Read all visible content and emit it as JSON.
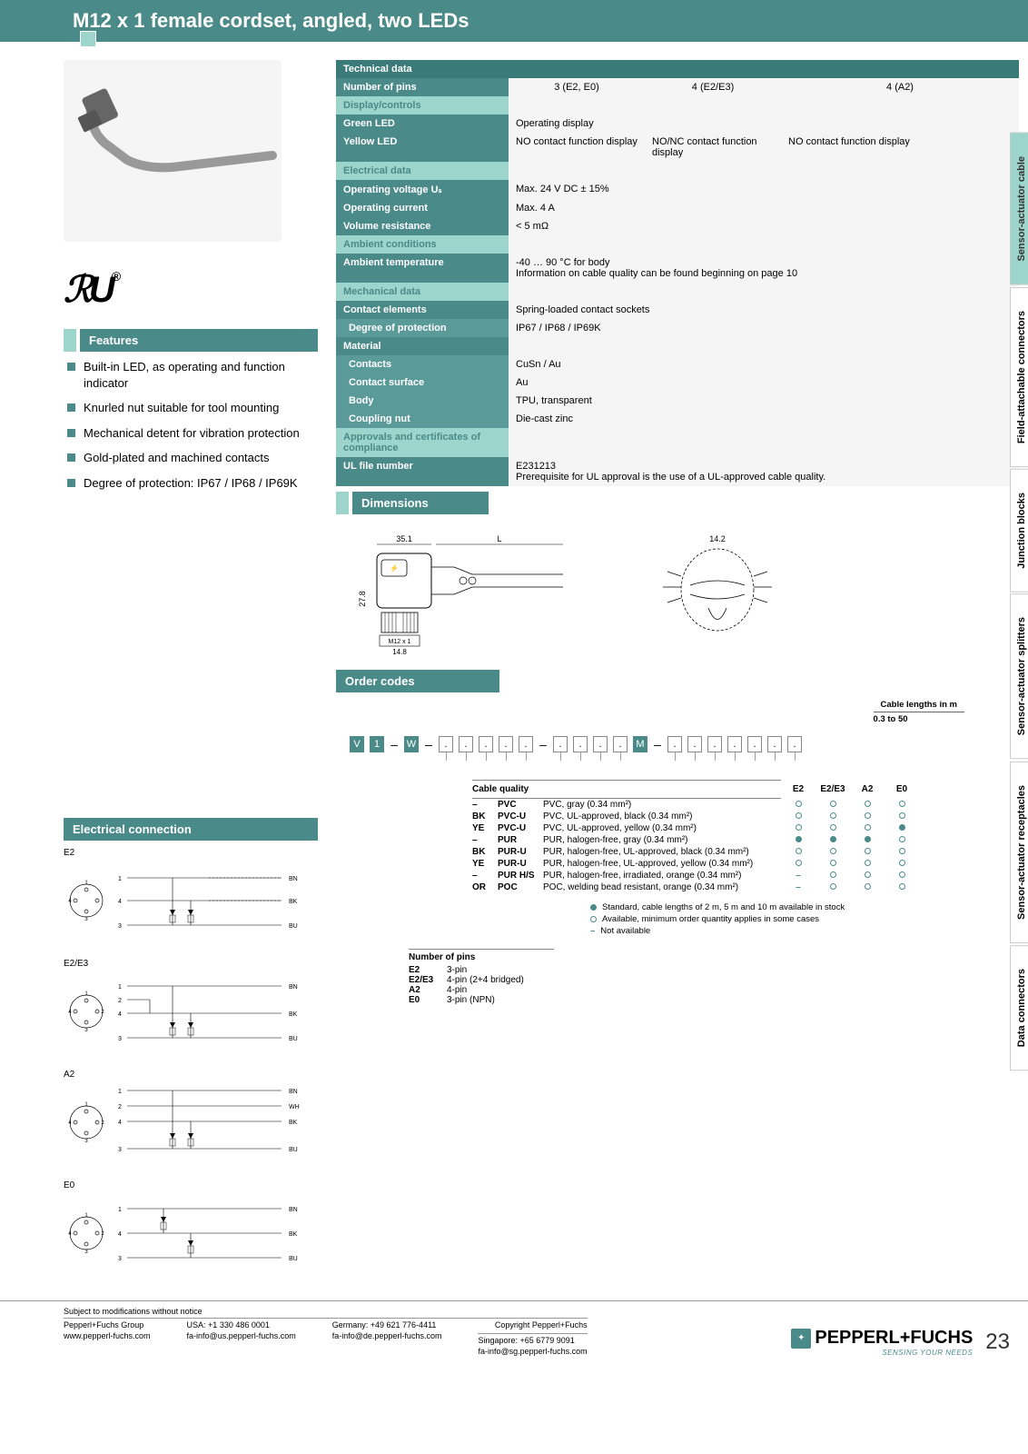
{
  "header": {
    "title": "M12 x 1 female cordset, angled, two LEDs"
  },
  "ul_mark": "RU",
  "features": {
    "title": "Features",
    "items": [
      "Built-in LED, as operating and function indicator",
      "Knurled nut suitable for tool mounting",
      "Mechanical detent for vibration protection",
      "Gold-plated and machined contacts",
      "Degree of protection: IP67 / IP68 / IP69K"
    ]
  },
  "tech": {
    "title": "Technical data",
    "pins": {
      "label": "Number of pins",
      "c1": "3 (E2, E0)",
      "c2": "4 (E2/E3)",
      "c3": "4 (A2)"
    },
    "display_hdr": "Display/controls",
    "green": {
      "label": "Green LED",
      "val": "Operating display"
    },
    "yellow": {
      "label": "Yellow LED",
      "c1": "NO contact function display",
      "c2": "NO/NC contact function display",
      "c3": "NO contact function display"
    },
    "elec_hdr": "Electrical data",
    "ov": {
      "label": "Operating voltage Uₛ",
      "val": "Max. 24 V DC ± 15%"
    },
    "oc": {
      "label": "Operating current",
      "val": "Max. 4 A"
    },
    "vr": {
      "label": "Volume resistance",
      "val": "< 5 mΩ"
    },
    "amb_hdr": "Ambient conditions",
    "at": {
      "label": "Ambient temperature",
      "val": "-40 … 90 °C for body\nInformation on cable quality can be found beginning on page 10"
    },
    "mech_hdr": "Mechanical data",
    "ce": {
      "label": "Contact elements",
      "val": "Spring-loaded contact sockets"
    },
    "dp": {
      "label": "Degree of protection",
      "val": "IP67 / IP68 / IP69K"
    },
    "mat": {
      "label": "Material",
      "val": ""
    },
    "con": {
      "label": "Contacts",
      "val": "CuSn / Au"
    },
    "cs": {
      "label": "Contact surface",
      "val": "Au"
    },
    "body": {
      "label": "Body",
      "val": "TPU, transparent"
    },
    "cn": {
      "label": "Coupling nut",
      "val": "Die-cast zinc"
    },
    "appr_hdr": "Approvals and certificates of compliance",
    "ul": {
      "label": "UL file number",
      "val": "E231213\nPrerequisite for UL approval is the use of a UL-approved cable quality."
    }
  },
  "dimensions": {
    "title": "Dimensions",
    "d35": "35.1",
    "dL": "L",
    "d278": "27.8",
    "m12": "M12 x 1",
    "d148": "14.8",
    "d142": "14.2"
  },
  "elec": {
    "title": "Electrical connection",
    "variants": [
      "E2",
      "E2/E3",
      "A2",
      "E0"
    ],
    "colors": {
      "bn": "BN",
      "bk": "BK",
      "bu": "BU",
      "wh": "WH"
    }
  },
  "order": {
    "title": "Order codes",
    "prefix": [
      "V",
      "1",
      "W",
      "M"
    ],
    "cable_len": {
      "title": "Cable lengths in m",
      "range": "0.3 to 50"
    },
    "cq": {
      "title": "Cable quality",
      "cols": [
        "E2",
        "E2/E3",
        "A2",
        "E0"
      ],
      "rows": [
        {
          "code": "–",
          "abbr": "PVC",
          "desc": "PVC, gray (0.34 mm²)",
          "m": [
            "o",
            "o",
            "o",
            "o"
          ]
        },
        {
          "code": "BK",
          "abbr": "PVC-U",
          "desc": "PVC, UL-approved, black (0.34 mm²)",
          "m": [
            "o",
            "o",
            "o",
            "o"
          ]
        },
        {
          "code": "YE",
          "abbr": "PVC-U",
          "desc": "PVC, UL-approved, yellow (0.34 mm²)",
          "m": [
            "o",
            "o",
            "o",
            "f"
          ]
        },
        {
          "code": "–",
          "abbr": "PUR",
          "desc": "PUR, halogen-free, gray (0.34 mm²)",
          "m": [
            "f",
            "f",
            "f",
            "o"
          ]
        },
        {
          "code": "BK",
          "abbr": "PUR-U",
          "desc": "PUR, halogen-free, UL-approved, black (0.34 mm²)",
          "m": [
            "o",
            "o",
            "o",
            "o"
          ]
        },
        {
          "code": "YE",
          "abbr": "PUR-U",
          "desc": "PUR, halogen-free, UL-approved, yellow (0.34 mm²)",
          "m": [
            "o",
            "o",
            "o",
            "o"
          ]
        },
        {
          "code": "–",
          "abbr": "PUR H/S",
          "desc": "PUR, halogen-free, irradiated, orange (0.34 mm²)",
          "m": [
            "-",
            "o",
            "o",
            "o"
          ]
        },
        {
          "code": "OR",
          "abbr": "POC",
          "desc": "POC, welding bead resistant, orange (0.34 mm²)",
          "m": [
            "-",
            "o",
            "o",
            "o"
          ]
        }
      ],
      "legend": [
        "Standard, cable lengths of 2 m, 5 m and 10 m available in stock",
        "Available, minimum order quantity applies in some cases",
        "Not available"
      ]
    },
    "pins": {
      "title": "Number of pins",
      "rows": [
        {
          "code": "E2",
          "desc": "3-pin"
        },
        {
          "code": "E2/E3",
          "desc": "4-pin (2+4 bridged)"
        },
        {
          "code": "A2",
          "desc": "4-pin"
        },
        {
          "code": "E0",
          "desc": "3-pin (NPN)"
        }
      ]
    }
  },
  "tabs": [
    "Sensor-actuator cable",
    "Field-attachable connectors",
    "Junction blocks",
    "Sensor-actuator splitters",
    "Sensor-actuator receptacles",
    "Data connectors"
  ],
  "footer": {
    "notice": "Subject to modifications without notice",
    "copyright": "Copyright Pepperl+Fuchs",
    "cols": [
      {
        "l1": "Pepperl+Fuchs Group",
        "l2": "www.pepperl-fuchs.com"
      },
      {
        "l1": "USA: +1 330 486 0001",
        "l2": "fa-info@us.pepperl-fuchs.com"
      },
      {
        "l1": "Germany: +49 621 776-4411",
        "l2": "fa-info@de.pepperl-fuchs.com"
      },
      {
        "l1": "Singapore: +65 6779 9091",
        "l2": "fa-info@sg.pepperl-fuchs.com"
      }
    ],
    "brand": "PEPPERL+FUCHS",
    "tag": "SENSING YOUR NEEDS",
    "page": "23"
  }
}
